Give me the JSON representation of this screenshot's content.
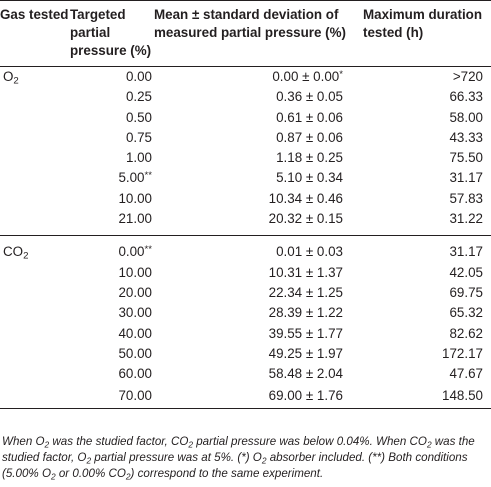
{
  "header": {
    "col1": "Gas tested",
    "col2": "Targeted partial pressure (%)",
    "col3": "Mean ± standard deviation of measured partial pressure (%)",
    "col4": "Maximum duration tested (h)"
  },
  "groups": [
    {
      "gas_main": "O",
      "gas_sub": "2",
      "rows": [
        {
          "target": "0.00",
          "target_mark": "",
          "measured": "0.00 ± 0.00",
          "measured_mark": "*",
          "duration": ">720"
        },
        {
          "target": "0.25",
          "target_mark": "",
          "measured": "0.36 ± 0.05",
          "measured_mark": "",
          "duration": "66.33"
        },
        {
          "target": "0.50",
          "target_mark": "",
          "measured": "0.61 ± 0.06",
          "measured_mark": "",
          "duration": "58.00"
        },
        {
          "target": "0.75",
          "target_mark": "",
          "measured": "0.87 ± 0.06",
          "measured_mark": "",
          "duration": "43.33"
        },
        {
          "target": "1.00",
          "target_mark": "",
          "measured": "1.18 ± 0.25",
          "measured_mark": "",
          "duration": "75.50"
        },
        {
          "target": "5.00",
          "target_mark": "**",
          "measured": "5.10 ± 0.34",
          "measured_mark": "",
          "duration": "31.17"
        },
        {
          "target": "10.00",
          "target_mark": "",
          "measured": "10.34 ± 0.46",
          "measured_mark": "",
          "duration": "57.83"
        },
        {
          "target": "21.00",
          "target_mark": "",
          "measured": "20.32 ± 0.15",
          "measured_mark": "",
          "duration": "31.22"
        }
      ]
    },
    {
      "gas_main": "CO",
      "gas_sub": "2",
      "rows": [
        {
          "target": "0.00",
          "target_mark": "**",
          "measured": "0.01 ± 0.03",
          "measured_mark": "",
          "duration": "31.17"
        },
        {
          "target": "10.00",
          "target_mark": "",
          "measured": "10.31 ± 1.37",
          "measured_mark": "",
          "duration": "42.05"
        },
        {
          "target": "20.00",
          "target_mark": "",
          "measured": "22.34 ± 1.25",
          "measured_mark": "",
          "duration": "69.75"
        },
        {
          "target": "30.00",
          "target_mark": "",
          "measured": "28.39 ± 1.22",
          "measured_mark": "",
          "duration": "65.32"
        },
        {
          "target": "40.00",
          "target_mark": "",
          "measured": "39.55 ± 1.77",
          "measured_mark": "",
          "duration": "82.62"
        },
        {
          "target": "50.00",
          "target_mark": "",
          "measured": "49.25 ± 1.97",
          "measured_mark": "",
          "duration": "172.17"
        },
        {
          "target": "60.00",
          "target_mark": "",
          "measured": "58.48 ± 2.04",
          "measured_mark": "",
          "duration": "47.67"
        },
        {
          "target": "70.00",
          "target_mark": "",
          "measured": "69.00 ± 1.76",
          "measured_mark": "",
          "duration": "148.50"
        }
      ]
    }
  ],
  "footnote": {
    "s1": "When O",
    "s1_sub": "2",
    "s2": " was the studied factor, CO",
    "s2_sub": "2",
    "s3": " partial pressure was below 0.04%. When CO",
    "s3_sub": "2",
    "s4": " was the studied factor, O",
    "s4_sub": "2",
    "s5": " partial pressure was at 5%. (*) O",
    "s5_sub": "2",
    "s6": " absorber included. (**) Both conditions (5.00% O",
    "s6_sub": "2",
    "s7": " or 0.00% CO",
    "s7_sub": "2",
    "s8": ") correspond to the same experiment."
  }
}
